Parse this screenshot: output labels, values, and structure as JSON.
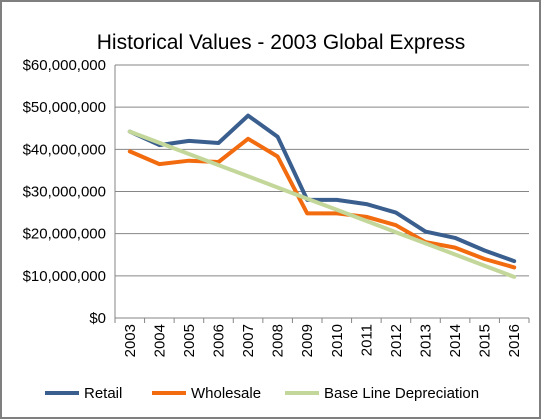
{
  "chart_data": {
    "type": "line",
    "title": "Historical Values - 2003 Global Express",
    "xlabel": "",
    "ylabel": "",
    "categories": [
      "2003",
      "2004",
      "2005",
      "2006",
      "2007",
      "2008",
      "2009",
      "2010",
      "2011",
      "2012",
      "2013",
      "2014",
      "2015",
      "2016"
    ],
    "y_ticks": [
      "$0",
      "$10,000,000",
      "$20,000,000",
      "$30,000,000",
      "$40,000,000",
      "$50,000,000",
      "$60,000,000"
    ],
    "ylim": [
      0,
      60000000
    ],
    "grid": "horizontal",
    "legend_position": "bottom",
    "series": [
      {
        "name": "Retail",
        "color": "#3a5f8f",
        "values": [
          44200000,
          41000000,
          42000000,
          41500000,
          48000000,
          43000000,
          28000000,
          28000000,
          27000000,
          25000000,
          20500000,
          19000000,
          16000000,
          13500000
        ]
      },
      {
        "name": "Wholesale",
        "color": "#f26b0f",
        "values": [
          39500000,
          36500000,
          37300000,
          37000000,
          42500000,
          38300000,
          24800000,
          24800000,
          24000000,
          22000000,
          18000000,
          16700000,
          14000000,
          12000000
        ]
      },
      {
        "name": "Base Line Depreciation",
        "color": "#c4d79b",
        "values": [
          44200000,
          41550000,
          38900000,
          36250000,
          33600000,
          30950000,
          28300000,
          25650000,
          23000000,
          20350000,
          17700000,
          15050000,
          12400000,
          9750000
        ]
      }
    ]
  }
}
